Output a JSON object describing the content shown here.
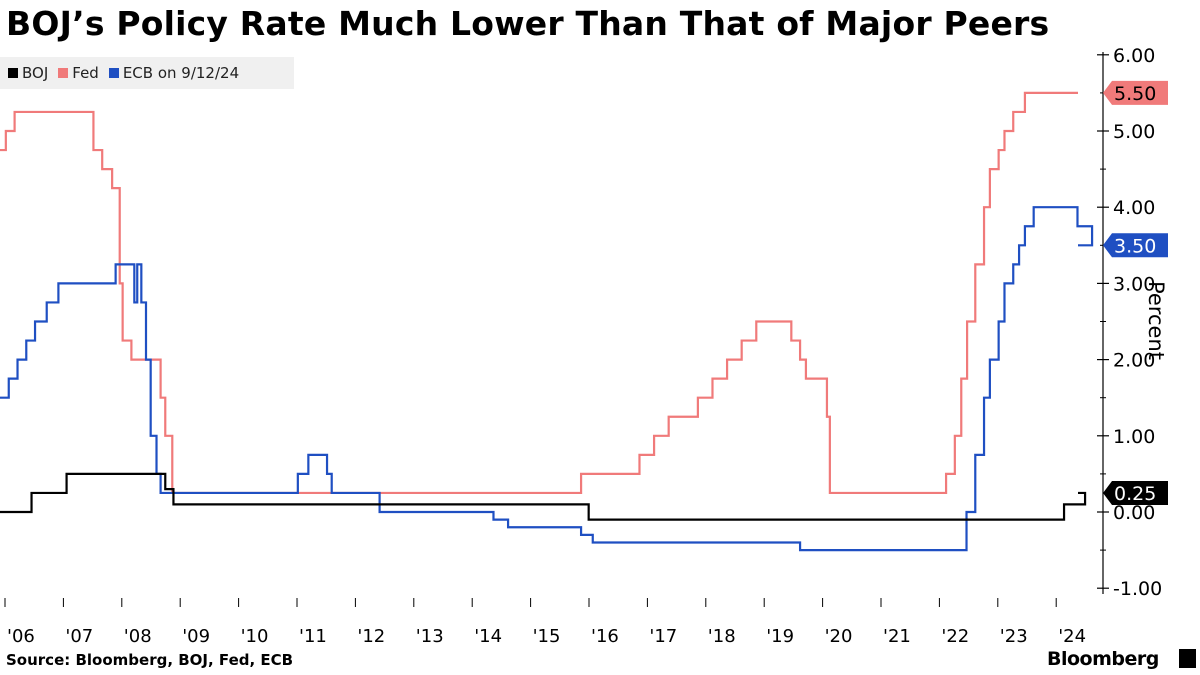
{
  "title": "BOJ’s Policy Rate Much Lower Than That of Major Peers",
  "source": "Source: Bloomberg, BOJ, Fed, ECB",
  "brand": "Bloomberg",
  "chart_data": {
    "type": "line",
    "title": "BOJ’s Policy Rate Much Lower Than That of Major Peers",
    "ylabel": "Percent",
    "xlabel": "",
    "ylim": [
      -1.0,
      6.0
    ],
    "xlim": [
      2006.0,
      2024.7
    ],
    "yticks": [
      -1.0,
      0.0,
      1.0,
      2.0,
      3.0,
      4.0,
      5.0,
      6.0
    ],
    "ytick_labels": [
      "-1.00",
      "0.00",
      "1.00",
      "2.00",
      "3.00",
      "4.00",
      "5.00",
      "6.00"
    ],
    "xticks": [
      2006,
      2007,
      2008,
      2009,
      2010,
      2011,
      2012,
      2013,
      2014,
      2015,
      2016,
      2017,
      2018,
      2019,
      2020,
      2021,
      2022,
      2023,
      2024
    ],
    "xtick_labels": [
      "'06",
      "'07",
      "'08",
      "'09",
      "'10",
      "'11",
      "'12",
      "'13",
      "'14",
      "'15",
      "'16",
      "'17",
      "'18",
      "'19",
      "'20",
      "'21",
      "'22",
      "'23",
      "'24"
    ],
    "series": [
      {
        "name": "BOJ",
        "color": "#000000",
        "last_value_label": "0.25",
        "steps": [
          [
            2006.0,
            0.0
          ],
          [
            2006.54,
            0.25
          ],
          [
            2007.14,
            0.5
          ],
          [
            2008.83,
            0.3
          ],
          [
            2008.97,
            0.1
          ],
          [
            2016.08,
            -0.1
          ],
          [
            2024.22,
            0.1
          ],
          [
            2024.58,
            0.25
          ]
        ]
      },
      {
        "name": "Fed",
        "color": "#f07a7a",
        "last_value_label": "5.50",
        "steps": [
          [
            2006.0,
            4.75
          ],
          [
            2006.1,
            5.0
          ],
          [
            2006.25,
            5.25
          ],
          [
            2007.6,
            4.75
          ],
          [
            2007.75,
            4.5
          ],
          [
            2007.92,
            4.25
          ],
          [
            2008.05,
            3.0
          ],
          [
            2008.1,
            2.25
          ],
          [
            2008.25,
            2.0
          ],
          [
            2008.75,
            1.5
          ],
          [
            2008.83,
            1.0
          ],
          [
            2008.95,
            0.25
          ],
          [
            2015.95,
            0.5
          ],
          [
            2016.95,
            0.75
          ],
          [
            2017.2,
            1.0
          ],
          [
            2017.45,
            1.25
          ],
          [
            2017.95,
            1.5
          ],
          [
            2018.2,
            1.75
          ],
          [
            2018.45,
            2.0
          ],
          [
            2018.7,
            2.25
          ],
          [
            2018.95,
            2.5
          ],
          [
            2019.55,
            2.25
          ],
          [
            2019.7,
            2.0
          ],
          [
            2019.8,
            1.75
          ],
          [
            2020.16,
            1.25
          ],
          [
            2020.21,
            0.25
          ],
          [
            2022.2,
            0.5
          ],
          [
            2022.35,
            1.0
          ],
          [
            2022.46,
            1.75
          ],
          [
            2022.56,
            2.5
          ],
          [
            2022.7,
            3.25
          ],
          [
            2022.85,
            4.0
          ],
          [
            2022.95,
            4.5
          ],
          [
            2023.1,
            4.75
          ],
          [
            2023.2,
            5.0
          ],
          [
            2023.35,
            5.25
          ],
          [
            2023.55,
            5.5
          ]
        ]
      },
      {
        "name": "ECB on 9/12/24",
        "color": "#1f4fc2",
        "last_value_label": "3.50",
        "steps": [
          [
            2006.0,
            1.5
          ],
          [
            2006.15,
            1.75
          ],
          [
            2006.3,
            2.0
          ],
          [
            2006.45,
            2.25
          ],
          [
            2006.6,
            2.5
          ],
          [
            2006.8,
            2.75
          ],
          [
            2007.0,
            3.0
          ],
          [
            2007.45,
            3.0
          ],
          [
            2007.98,
            3.25
          ],
          [
            2008.3,
            2.75
          ],
          [
            2008.35,
            3.25
          ],
          [
            2008.42,
            2.75
          ],
          [
            2008.5,
            2.0
          ],
          [
            2008.58,
            1.0
          ],
          [
            2008.68,
            0.5
          ],
          [
            2008.75,
            0.25
          ],
          [
            2011.1,
            0.5
          ],
          [
            2011.28,
            0.75
          ],
          [
            2011.6,
            0.5
          ],
          [
            2011.68,
            0.25
          ],
          [
            2012.5,
            0.0
          ],
          [
            2014.45,
            -0.1
          ],
          [
            2014.7,
            -0.2
          ],
          [
            2015.95,
            -0.3
          ],
          [
            2016.15,
            -0.4
          ],
          [
            2019.7,
            -0.5
          ],
          [
            2022.55,
            0.0
          ],
          [
            2022.7,
            0.75
          ],
          [
            2022.85,
            1.5
          ],
          [
            2022.95,
            2.0
          ],
          [
            2023.1,
            2.5
          ],
          [
            2023.2,
            3.0
          ],
          [
            2023.35,
            3.25
          ],
          [
            2023.45,
            3.5
          ],
          [
            2023.55,
            3.75
          ],
          [
            2023.7,
            4.0
          ],
          [
            2024.45,
            3.75
          ],
          [
            2024.7,
            3.5
          ]
        ]
      }
    ]
  }
}
